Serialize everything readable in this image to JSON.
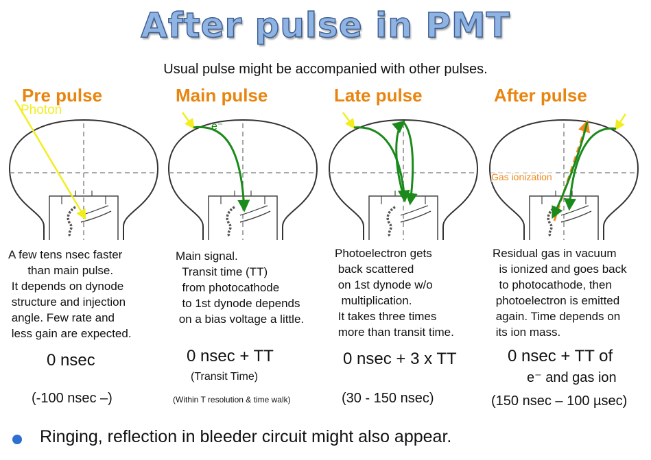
{
  "title": "After pulse in PMT",
  "subtitle": "Usual pulse might be accompanied with other pulses.",
  "columns": [
    {
      "heading": "Pre pulse",
      "description": "A few tens nsec faster\n      than main pulse.\n It depends on dynode\n structure and injection\n angle. Few rate and\n less gain are expected.",
      "timing": "0 nsec",
      "note": "",
      "range": "(-100 nsec –)"
    },
    {
      "heading": "Main pulse",
      "description": "Main signal.\n  Transit time (TT)\n  from photocathode\n  to 1st dynode depends\n on a bias voltage a little.",
      "timing": "0 nsec + TT",
      "note": "(Transit Time)",
      "range": "(Within T resolution & time walk)"
    },
    {
      "heading": "Late pulse",
      "description": "Photoelectron gets\n back scattered\n on 1st dynode w/o\n  multiplication.\n It takes three times\n more than transit time.",
      "timing": "0 nsec + 3 x TT",
      "note": "",
      "range": "(30 - 150 nsec)"
    },
    {
      "heading": "After pulse",
      "description": "Residual gas in vacuum\n  is ionized and goes back\n  to photocathode, then\n photoelectron is emitted\n again. Time depends on\n its ion mass.",
      "timing": "0 nsec + TT of",
      "note": "e⁻ and gas ion",
      "range": "(150 nsec – 100 µsec)"
    }
  ],
  "labels": {
    "photon": "Photon",
    "electron": "e⁻",
    "gas_ionization": "Gas ionization"
  },
  "bullet": "Ringing, reflection in bleeder circuit might also appear.",
  "colors": {
    "heading": "#e8850f",
    "photon": "#f2ee1e",
    "electron_path": "#1a8a1a",
    "ion_path": "#f08a1e",
    "bullet": "#2e6fd0"
  }
}
